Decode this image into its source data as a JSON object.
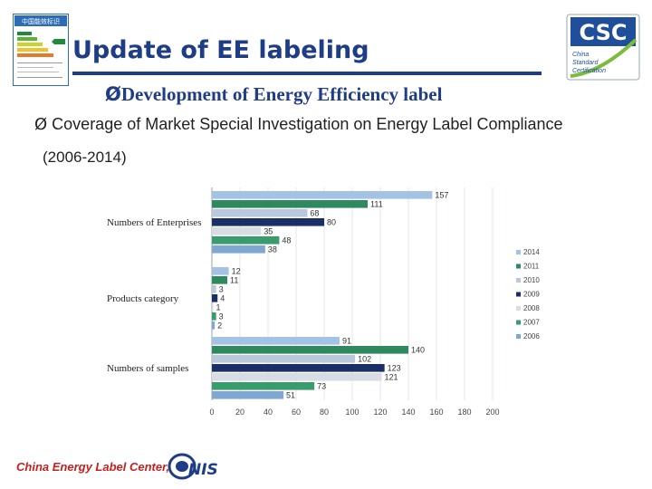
{
  "header": {
    "title": "Update of EE labeling",
    "logo_text": "CSC",
    "logo_subtext": [
      "China",
      "Standard",
      "Certification"
    ],
    "thumb_title": "中国能效标识"
  },
  "bullets": {
    "main": "Development of Energy Efficiency label",
    "sub": "Coverage of Market Special Investigation on Energy Label Compliance",
    "sub_cont": "(2006-2014)",
    "arrow": "Ø"
  },
  "footer": {
    "text": "China Energy Label Center,",
    "logo_text": "NIS"
  },
  "colors": {
    "title": "#1f3c86",
    "footer": "#c6201f",
    "series": [
      "#a4c2e4",
      "#2e8a5e",
      "#b9c8db",
      "#1a2f66",
      "#d8dde3",
      "#3a9c6c",
      "#7fa7d2"
    ]
  },
  "chart_data": {
    "type": "bar",
    "orientation": "horizontal",
    "categories": [
      "Numbers of Enterprises",
      "Products category",
      "Numbers of samples"
    ],
    "series": [
      {
        "name": "2014",
        "values": [
          157,
          12,
          91
        ]
      },
      {
        "name": "2011",
        "values": [
          111,
          11,
          140
        ]
      },
      {
        "name": "2010",
        "values": [
          68,
          3,
          102
        ]
      },
      {
        "name": "2009",
        "values": [
          80,
          4,
          123
        ]
      },
      {
        "name": "2008",
        "values": [
          35,
          1,
          121
        ]
      },
      {
        "name": "2007",
        "values": [
          48,
          3,
          73
        ]
      },
      {
        "name": "2006",
        "values": [
          38,
          2,
          51
        ]
      }
    ],
    "value_labels": [
      [
        "157",
        "12",
        "91"
      ],
      [
        "111",
        "11",
        "140"
      ],
      [
        "68",
        "3",
        "102"
      ],
      [
        "80",
        "4",
        "123"
      ],
      [
        "35",
        "1",
        "121"
      ],
      [
        "48",
        "3",
        "73"
      ],
      [
        "38",
        "2",
        "51"
      ]
    ],
    "xticks": [
      "0",
      "20",
      "40",
      "60",
      "80",
      "100",
      "120",
      "140",
      "160",
      "180",
      "200"
    ],
    "xlim": [
      0,
      200
    ],
    "legend": [
      "2014",
      "2011",
      "2010",
      "2009",
      "2008",
      "2007",
      "2006"
    ],
    "legend_position": "right",
    "grid": true
  }
}
